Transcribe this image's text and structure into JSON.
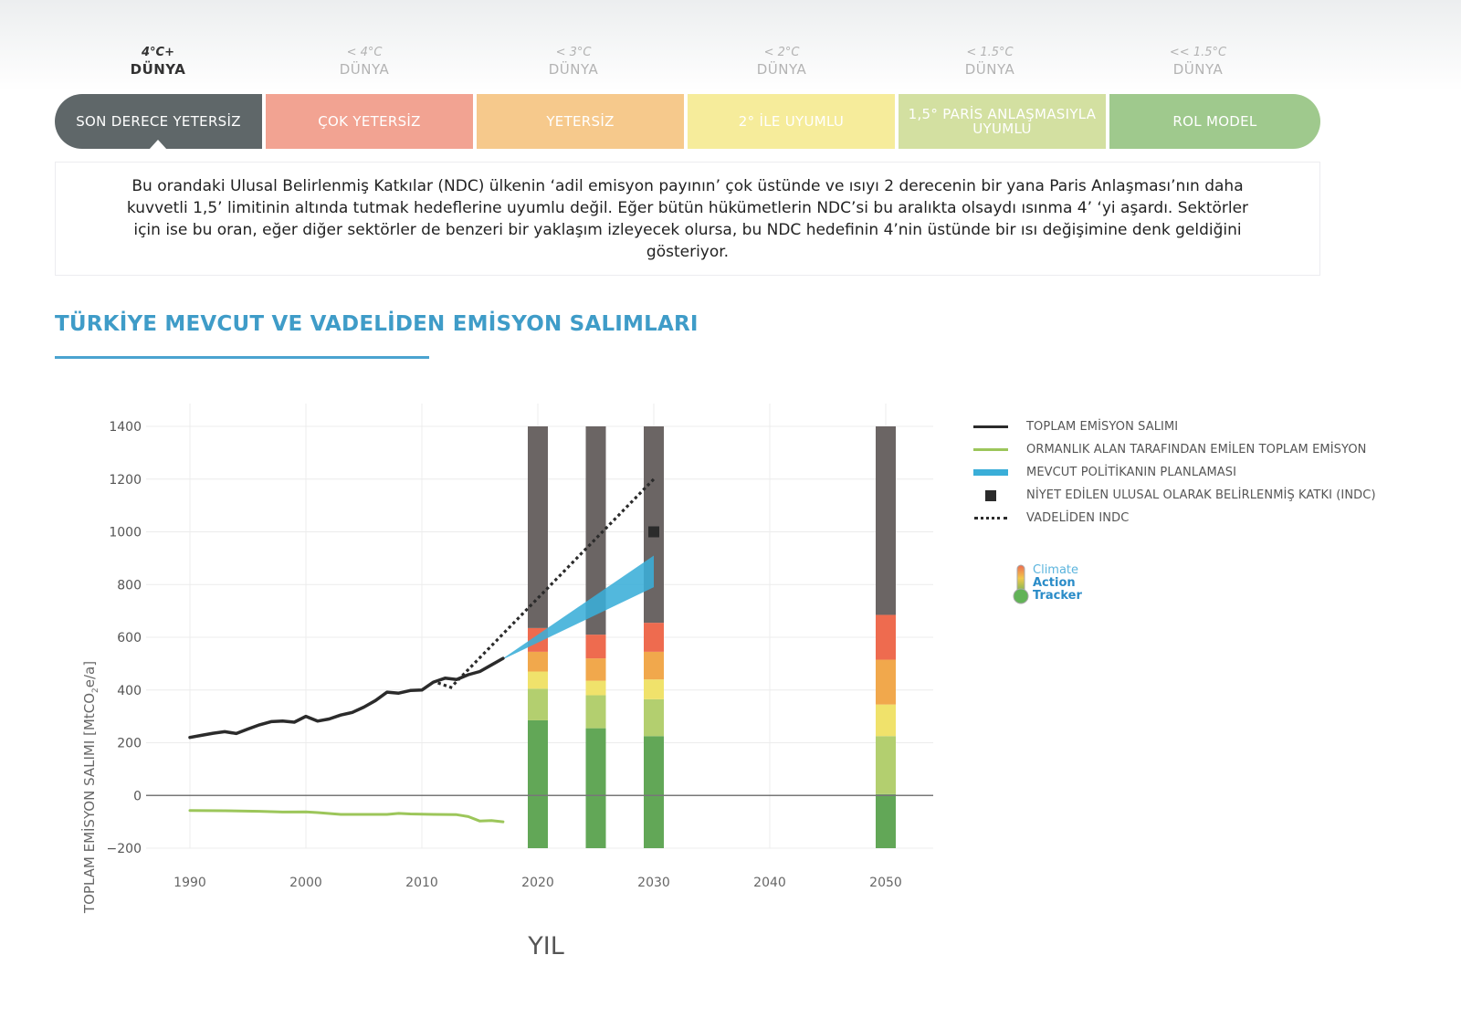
{
  "scale": [
    {
      "temp": "4°C+",
      "world": "DÜNYA",
      "rating": "SON DERECE YETERSİZ",
      "color": "#5f6769",
      "active": true
    },
    {
      "temp": "< 4°C",
      "world": "DÜNYA",
      "rating": "ÇOK YETERSİZ",
      "color": "#f2a392",
      "active": false
    },
    {
      "temp": "< 3°C",
      "world": "DÜNYA",
      "rating": "YETERSİZ",
      "color": "#f6c98c",
      "active": false
    },
    {
      "temp": "< 2°C",
      "world": "DÜNYA",
      "rating": "2° İLE UYUMLU",
      "color": "#f6ec9b",
      "active": false
    },
    {
      "temp": "< 1.5°C",
      "world": "DÜNYA",
      "rating": "1,5° PARİS ANLAŞMASIYLA UYUMLU",
      "color": "#d3e0a1",
      "active": false
    },
    {
      "temp": "<< 1.5°C",
      "world": "DÜNYA",
      "rating": "ROL MODEL",
      "color": "#9fc98d",
      "active": false
    }
  ],
  "description": "Bu orandaki Ulusal Belirlenmiş Katkılar (NDC) ülkenin ‘adil emisyon payının’ çok üstünde ve ısıyı 2 derecenin bir yana Paris Anlaşması’nın daha kuvvetli 1,5’ limitinin altında tutmak hedeflerine uyumlu değil.  Eğer bütün hükümetlerin NDC’si bu aralıkta olsaydı ısınma 4’ ‘yi aşardı. Sektörler için ise bu oran, eğer diğer sektörler de benzeri bir yaklaşım izleyecek olursa, bu NDC hedefinin 4’nin üstünde bir ısı değişimine denk geldiğini gösteriyor.",
  "section_title": "TÜRKİYE MEVCUT VE VADELİDEN EMİSYON SALIMLARI",
  "logo": {
    "line1": "Climate",
    "line2": "Action",
    "line3": "Tracker"
  },
  "chart_data": {
    "type": "line",
    "title": "TÜRKİYE MEVCUT VE VADELİDEN EMİSYON SALIMLARI",
    "xlabel": "YIL",
    "ylabel_main": "TOPLAM EMİSYON SALIMI  [MtCO",
    "ylabel_sub": "2",
    "ylabel_end": "e/a]",
    "xlim": [
      1985,
      2054
    ],
    "ylim": [
      -200,
      1400
    ],
    "xticks": [
      1990,
      2000,
      2010,
      2020,
      2030,
      2040,
      2050
    ],
    "yticks": [
      -200,
      0,
      200,
      400,
      600,
      800,
      1000,
      1200,
      1400
    ],
    "grid": true,
    "legend_position": "right",
    "legend": [
      {
        "label": "TOPLAM EMİSYON SALIMI",
        "color": "#2b2b2b",
        "style": "line"
      },
      {
        "label": "ORMANLIK ALAN TARAFINDAN EMİLEN TOPLAM EMİSYON",
        "color": "#9cc65a",
        "style": "line"
      },
      {
        "label": "MEVCUT POLİTİKANIN PLANLAMASI",
        "color": "#3aaed8",
        "style": "band"
      },
      {
        "label": "NİYET EDİLEN ULUSAL OLARAK BELİRLENMİŞ KATKI (INDC)",
        "color": "#2b2b2b",
        "style": "square"
      },
      {
        "label": "VADELİDEN INDC",
        "color": "#2b2b2b",
        "style": "dotted"
      }
    ],
    "series": [
      {
        "name": "TOPLAM EMİSYON SALIMI",
        "color": "#2b2b2b",
        "x": [
          1990,
          1991,
          1992,
          1993,
          1994,
          1995,
          1996,
          1997,
          1998,
          1999,
          2000,
          2001,
          2002,
          2003,
          2004,
          2005,
          2006,
          2007,
          2008,
          2009,
          2010,
          2011,
          2012,
          2013,
          2014,
          2015,
          2016,
          2017
        ],
        "y": [
          220,
          228,
          236,
          242,
          235,
          252,
          268,
          280,
          282,
          278,
          300,
          282,
          290,
          305,
          315,
          335,
          360,
          392,
          388,
          398,
          400,
          430,
          445,
          440,
          458,
          470,
          495,
          520
        ]
      },
      {
        "name": "ORMANLIK ALAN TARAFINDAN EMİLEN TOPLAM EMİSYON",
        "color": "#9cc65a",
        "x": [
          1990,
          1993,
          1996,
          1998,
          2000,
          2001,
          2003,
          2005,
          2007,
          2008,
          2009,
          2011,
          2013,
          2014,
          2015,
          2016,
          2017
        ],
        "y": [
          -57,
          -58,
          -60,
          -63,
          -62,
          -65,
          -72,
          -72,
          -72,
          -68,
          -70,
          -72,
          -73,
          -80,
          -97,
          -95,
          -100
        ]
      },
      {
        "name": "VADELİDEN INDC",
        "color": "#2b2b2b",
        "style": "dotted",
        "x": [
          2011.5,
          2012.5,
          2030
        ],
        "y": [
          425,
          410,
          1200
        ]
      }
    ],
    "current_policy_band": {
      "x": [
        2017,
        2030
      ],
      "lower": [
        520,
        790
      ],
      "upper": [
        520,
        910
      ]
    },
    "indc_point": {
      "x": 2030,
      "y": 1000
    },
    "rating_bars": {
      "segment_colors": [
        "#62a757",
        "#b3cf6f",
        "#f0e26b",
        "#f1a84c",
        "#ee6b4f",
        "#6b6564"
      ],
      "bars": [
        {
          "x": 2020,
          "bounds": [
            -200,
            285,
            405,
            470,
            545,
            635,
            1400
          ]
        },
        {
          "x": 2025,
          "bounds": [
            -200,
            255,
            380,
            435,
            520,
            610,
            1400
          ]
        },
        {
          "x": 2030,
          "bounds": [
            -200,
            225,
            365,
            440,
            545,
            655,
            1400
          ]
        },
        {
          "x": 2050,
          "bounds": [
            -200,
            5,
            225,
            345,
            515,
            685,
            1400
          ]
        }
      ]
    }
  }
}
